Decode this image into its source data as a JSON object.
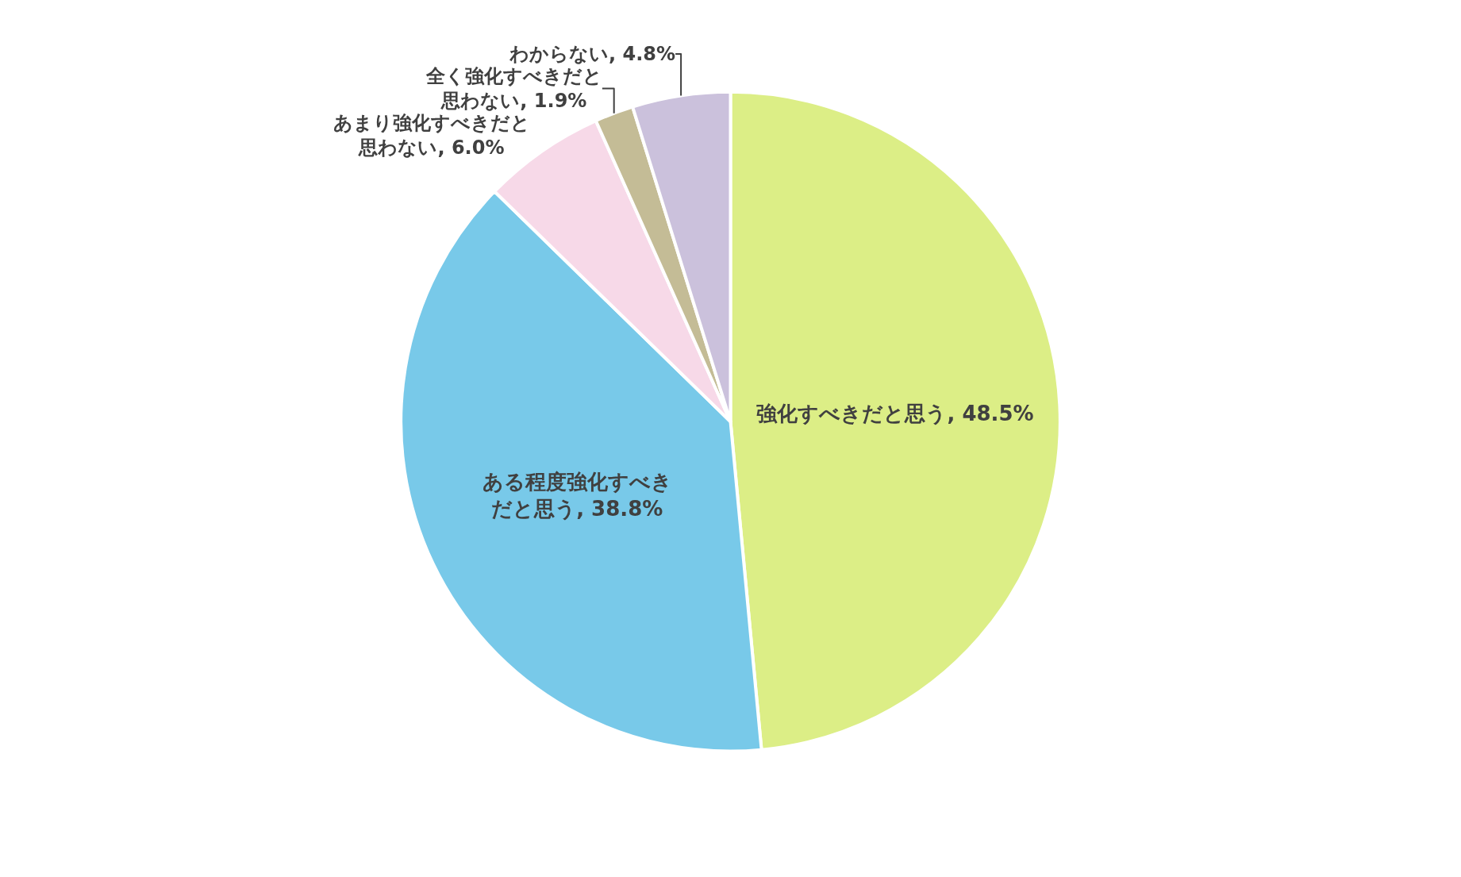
{
  "chart_data": {
    "type": "pie",
    "categories": [
      "強化すべきだと思う",
      "ある程度強化すべきだと思う",
      "あまり強化すべきだと思わない",
      "全く強化すべきだと思わない",
      "わからない"
    ],
    "values": [
      48.5,
      38.8,
      6.0,
      1.9,
      4.8
    ],
    "value_labels": [
      "48.5%",
      "38.8%",
      "6.0%",
      "1.9%",
      "4.8%"
    ],
    "colors": [
      "#dcee86",
      "#78c9e9",
      "#f7d9e8",
      "#c4bc96",
      "#cbc1dc"
    ],
    "legend": false
  }
}
